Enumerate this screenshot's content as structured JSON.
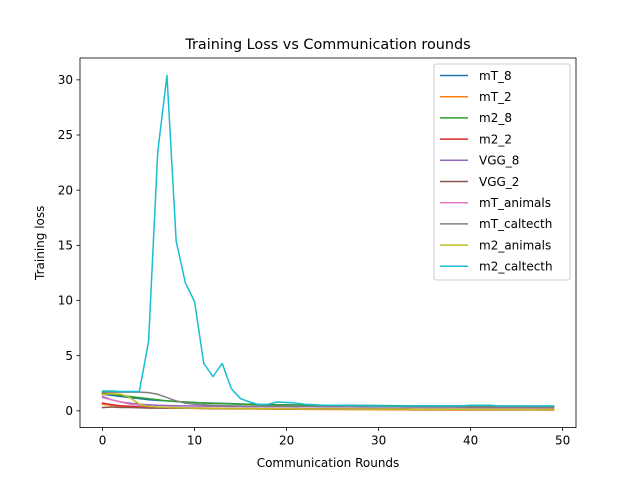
{
  "chart_data": {
    "type": "line",
    "title": "Training Loss vs Communication rounds",
    "xlabel": "Communication Rounds",
    "ylabel": "Training loss",
    "xlim": [
      -2.45,
      51.45
    ],
    "ylim": [
      -1.52,
      31.98
    ],
    "xticks": [
      0,
      10,
      20,
      30,
      40,
      50
    ],
    "yticks": [
      0,
      5,
      10,
      15,
      20,
      25,
      30
    ],
    "grid": false,
    "legend_position": "upper right",
    "x": [
      0,
      1,
      2,
      3,
      4,
      5,
      6,
      7,
      8,
      9,
      10,
      11,
      12,
      13,
      14,
      15,
      16,
      17,
      18,
      19,
      20,
      21,
      22,
      23,
      24,
      25,
      26,
      27,
      28,
      29,
      30,
      31,
      32,
      33,
      34,
      35,
      36,
      37,
      38,
      39,
      40,
      41,
      42,
      43,
      44,
      45,
      46,
      47,
      48,
      49
    ],
    "series": [
      {
        "name": "mT_8",
        "color": "#1f77b4",
        "values": [
          1.5,
          1.4,
          1.3,
          1.2,
          1.1,
          1.0,
          0.95,
          0.9,
          0.85,
          0.8,
          0.75,
          0.72,
          0.7,
          0.68,
          0.65,
          0.62,
          0.6,
          0.58,
          0.56,
          0.55,
          0.54,
          0.53,
          0.52,
          0.51,
          0.5,
          0.5,
          0.49,
          0.49,
          0.48,
          0.48,
          0.47,
          0.47,
          0.46,
          0.46,
          0.45,
          0.45,
          0.45,
          0.44,
          0.44,
          0.44,
          0.43,
          0.43,
          0.43,
          0.42,
          0.42,
          0.42,
          0.41,
          0.41,
          0.41,
          0.4
        ]
      },
      {
        "name": "mT_2",
        "color": "#ff7f0e",
        "values": [
          0.6,
          0.5,
          0.45,
          0.4,
          0.35,
          0.3,
          0.28,
          0.26,
          0.25,
          0.24,
          0.22,
          0.21,
          0.2,
          0.19,
          0.18,
          0.17,
          0.16,
          0.16,
          0.15,
          0.15,
          0.14,
          0.14,
          0.13,
          0.13,
          0.12,
          0.12,
          0.12,
          0.11,
          0.11,
          0.11,
          0.1,
          0.1,
          0.1,
          0.1,
          0.09,
          0.09,
          0.09,
          0.09,
          0.08,
          0.08,
          0.08,
          0.08,
          0.08,
          0.07,
          0.07,
          0.07,
          0.07,
          0.07,
          0.06,
          0.06
        ]
      },
      {
        "name": "m2_8",
        "color": "#2ca02c",
        "values": [
          1.6,
          1.5,
          1.4,
          1.3,
          1.2,
          1.1,
          1.0,
          0.9,
          0.85,
          0.8,
          0.75,
          0.7,
          0.68,
          0.65,
          0.62,
          0.6,
          0.58,
          0.56,
          0.55,
          0.54,
          0.53,
          0.52,
          0.51,
          0.5,
          0.5,
          0.49,
          0.49,
          0.48,
          0.48,
          0.47,
          0.47,
          0.46,
          0.46,
          0.45,
          0.45,
          0.45,
          0.44,
          0.44,
          0.44,
          0.43,
          0.43,
          0.43,
          0.42,
          0.42,
          0.42,
          0.41,
          0.41,
          0.41,
          0.4,
          0.4
        ]
      },
      {
        "name": "m2_2",
        "color": "#d62728",
        "values": [
          0.7,
          0.55,
          0.45,
          0.4,
          0.35,
          0.3,
          0.28,
          0.26,
          0.25,
          0.24,
          0.23,
          0.22,
          0.21,
          0.2,
          0.2,
          0.19,
          0.19,
          0.18,
          0.18,
          0.17,
          0.17,
          0.16,
          0.16,
          0.16,
          0.15,
          0.15,
          0.15,
          0.14,
          0.14,
          0.14,
          0.14,
          0.13,
          0.13,
          0.13,
          0.13,
          0.12,
          0.12,
          0.12,
          0.12,
          0.12,
          0.11,
          0.11,
          0.11,
          0.11,
          0.11,
          0.1,
          0.1,
          0.1,
          0.1,
          0.1
        ]
      },
      {
        "name": "VGG_8",
        "color": "#9467bd",
        "values": [
          1.3,
          1.0,
          0.8,
          0.7,
          0.6,
          0.55,
          0.5,
          0.48,
          0.46,
          0.45,
          0.44,
          0.43,
          0.42,
          0.41,
          0.4,
          0.4,
          0.39,
          0.39,
          0.38,
          0.38,
          0.38,
          0.37,
          0.37,
          0.37,
          0.36,
          0.36,
          0.36,
          0.36,
          0.35,
          0.35,
          0.35,
          0.35,
          0.35,
          0.34,
          0.34,
          0.34,
          0.34,
          0.34,
          0.34,
          0.33,
          0.33,
          0.33,
          0.33,
          0.33,
          0.33,
          0.33,
          0.32,
          0.32,
          0.32,
          0.32
        ]
      },
      {
        "name": "VGG_2",
        "color": "#8c564b",
        "values": [
          0.3,
          0.35,
          0.3,
          0.3,
          0.28,
          0.25,
          0.25,
          0.24,
          0.24,
          0.23,
          0.23,
          0.22,
          0.22,
          0.22,
          0.21,
          0.21,
          0.21,
          0.2,
          0.2,
          0.2,
          0.2,
          0.2,
          0.19,
          0.19,
          0.19,
          0.19,
          0.19,
          0.18,
          0.18,
          0.18,
          0.18,
          0.18,
          0.18,
          0.18,
          0.17,
          0.17,
          0.17,
          0.17,
          0.17,
          0.17,
          0.17,
          0.17,
          0.16,
          0.16,
          0.16,
          0.16,
          0.16,
          0.16,
          0.16,
          0.16
        ]
      },
      {
        "name": "mT_animals",
        "color": "#e377c2",
        "values": [
          1.2,
          1.0,
          0.8,
          0.6,
          0.5,
          0.4,
          0.35,
          0.32,
          0.3,
          0.28,
          0.27,
          0.26,
          0.25,
          0.24,
          0.23,
          0.22,
          0.21,
          0.2,
          0.2,
          0.19,
          0.19,
          0.18,
          0.18,
          0.17,
          0.17,
          0.17,
          0.16,
          0.16,
          0.16,
          0.15,
          0.15,
          0.15,
          0.15,
          0.14,
          0.14,
          0.14,
          0.14,
          0.13,
          0.13,
          0.13,
          0.13,
          0.13,
          0.12,
          0.12,
          0.12,
          0.12,
          0.12,
          0.12,
          0.11,
          0.11
        ]
      },
      {
        "name": "mT_caltecth",
        "color": "#7f7f7f",
        "values": [
          1.7,
          1.7,
          1.7,
          1.7,
          1.7,
          1.65,
          1.5,
          1.2,
          0.9,
          0.7,
          0.6,
          0.55,
          0.5,
          0.47,
          0.45,
          0.44,
          0.43,
          0.42,
          0.42,
          0.41,
          0.41,
          0.4,
          0.4,
          0.4,
          0.39,
          0.39,
          0.39,
          0.38,
          0.38,
          0.38,
          0.38,
          0.37,
          0.37,
          0.37,
          0.37,
          0.36,
          0.36,
          0.36,
          0.36,
          0.36,
          0.35,
          0.35,
          0.35,
          0.35,
          0.35,
          0.35,
          0.34,
          0.34,
          0.34,
          0.34
        ]
      },
      {
        "name": "m2_animals",
        "color": "#bcbd22",
        "values": [
          1.5,
          1.55,
          1.5,
          1.2,
          0.6,
          0.4,
          0.35,
          0.3,
          0.28,
          0.26,
          0.25,
          0.24,
          0.23,
          0.22,
          0.21,
          0.2,
          0.2,
          0.19,
          0.19,
          0.18,
          0.18,
          0.17,
          0.17,
          0.17,
          0.16,
          0.16,
          0.16,
          0.15,
          0.15,
          0.15,
          0.15,
          0.14,
          0.14,
          0.14,
          0.14,
          0.13,
          0.13,
          0.13,
          0.13,
          0.13,
          0.12,
          0.12,
          0.12,
          0.12,
          0.12,
          0.12,
          0.11,
          0.11,
          0.11,
          0.11
        ]
      },
      {
        "name": "m2_caltecth",
        "color": "#17becf",
        "values": [
          1.8,
          1.8,
          1.75,
          1.75,
          1.75,
          6.3,
          23.5,
          30.4,
          15.4,
          11.6,
          9.9,
          4.3,
          3.1,
          4.3,
          2.0,
          1.1,
          0.8,
          0.55,
          0.6,
          0.8,
          0.75,
          0.7,
          0.6,
          0.55,
          0.5,
          0.5,
          0.5,
          0.48,
          0.48,
          0.45,
          0.45,
          0.45,
          0.42,
          0.45,
          0.45,
          0.45,
          0.45,
          0.45,
          0.45,
          0.45,
          0.5,
          0.5,
          0.5,
          0.45,
          0.45,
          0.45,
          0.45,
          0.45,
          0.45,
          0.45
        ]
      }
    ]
  }
}
